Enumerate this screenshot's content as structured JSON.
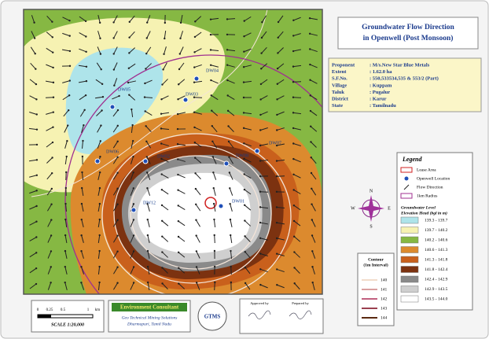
{
  "title": [
    "Groundwater Flow Direction",
    "in Openwell (Post Monsoon)"
  ],
  "info": [
    [
      "Proponent",
      ": M/s.New Star Blue Metals"
    ],
    [
      "Extent",
      ": 1.62.0 ha"
    ],
    [
      "S.F.No.",
      ": 550,533534,535 & 553/2 (Part)"
    ],
    [
      "Village",
      ": Kuppam"
    ],
    [
      "Taluk",
      ": Pugalur"
    ],
    [
      "District",
      ": Karur"
    ],
    [
      "State",
      ": Tamilnadu"
    ]
  ],
  "legend": {
    "title": "Legend",
    "items": [
      "Lease Area",
      "Openwell Location",
      "Flow Direction",
      "1km Radius"
    ],
    "levels_title": [
      "Groundwater Level",
      "Elevation Head (bgl in m)"
    ],
    "levels": [
      {
        "label": "139.3 - 139.7",
        "color": "#aee4ea"
      },
      {
        "label": "139.7 - 140.2",
        "color": "#f6f2b2"
      },
      {
        "label": "140.2 - 140.6",
        "color": "#86b843"
      },
      {
        "label": "140.6 - 141.3",
        "color": "#dc8a2e"
      },
      {
        "label": "141.3 - 141.8",
        "color": "#c9601c"
      },
      {
        "label": "141.8 - 142.4",
        "color": "#7c3210"
      },
      {
        "label": "142.4 - 142.9",
        "color": "#8a8a8a"
      },
      {
        "label": "142.9 - 143.5",
        "color": "#cfcfcf"
      },
      {
        "label": "143.5 - 144.0",
        "color": "#ffffff"
      }
    ]
  },
  "contour": {
    "title": [
      "Contour",
      "(1m Interval)"
    ],
    "labels": [
      "140",
      "141",
      "142",
      "143",
      "144"
    ]
  },
  "wells": [
    "DW01",
    "DW02",
    "DW03",
    "DW04",
    "DW05",
    "DW06",
    "DW07",
    "DW08",
    "DW12"
  ],
  "scale": {
    "ticks": [
      "0",
      "0.25",
      "0.5",
      "1",
      "km"
    ],
    "label": "SCALE 1:20,000"
  },
  "consultant": {
    "title": "Environment Consultant",
    "lines": [
      "Geo Technical Mining Solutions",
      "Dharmapuri, Tamil Nadu"
    ],
    "logo": "GTMS"
  },
  "signatures": [
    "Approved by",
    "Prepared by"
  ],
  "compass": [
    "N",
    "E",
    "S",
    "W"
  ]
}
